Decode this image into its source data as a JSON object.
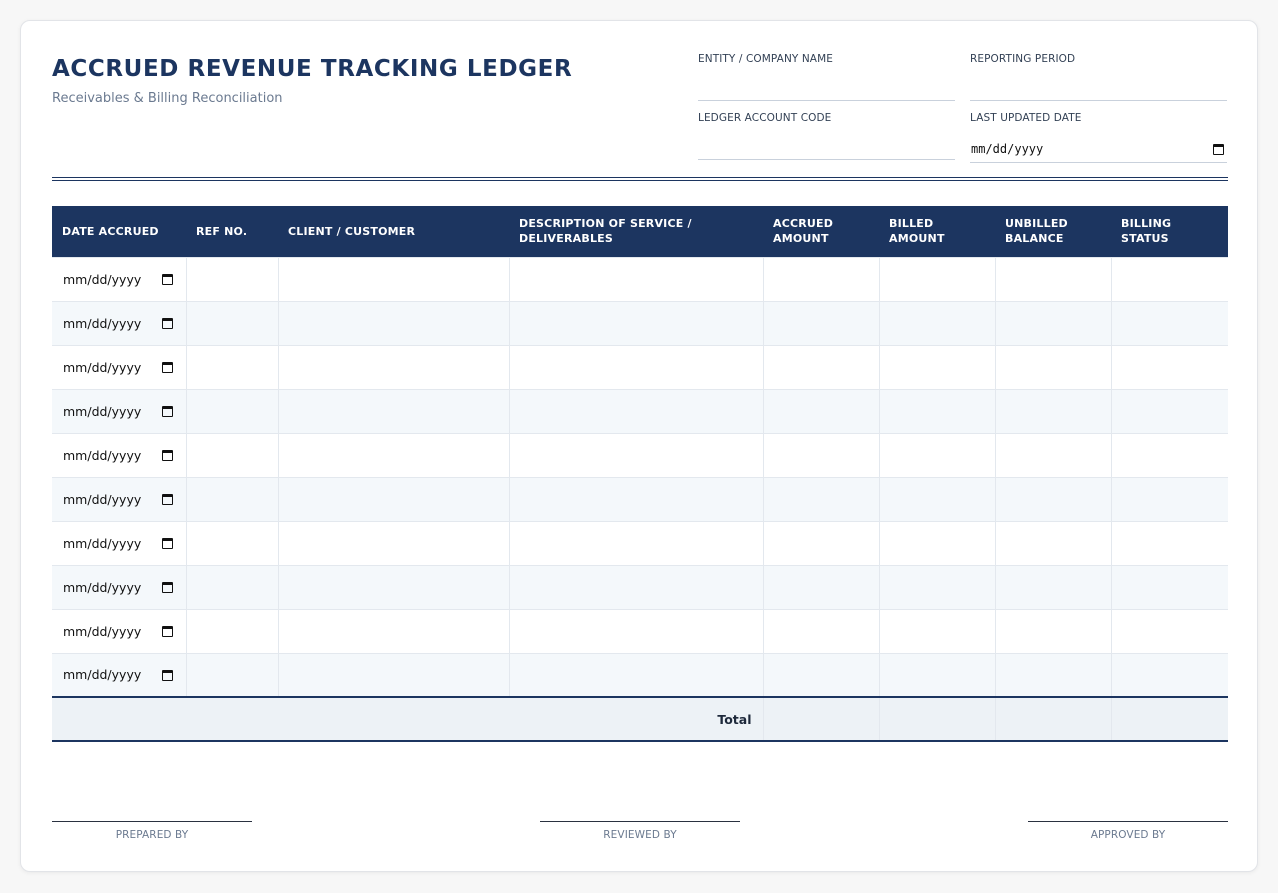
{
  "header": {
    "title": "ACCRUED REVENUE TRACKING LEDGER",
    "subtitle": "Receivables & Billing Reconciliation"
  },
  "meta": {
    "entity_label": "ENTITY / COMPANY NAME",
    "entity_value": "",
    "period_label": "REPORTING PERIOD",
    "period_value": "",
    "account_label": "LEDGER ACCOUNT CODE",
    "account_value": "",
    "updated_label": "LAST UPDATED DATE",
    "updated_value": "mm/dd/yyyy"
  },
  "table": {
    "columns": [
      "DATE ACCRUED",
      "REF NO.",
      "CLIENT / CUSTOMER",
      "DESCRIPTION OF SERVICE / DELIVERABLES",
      "ACCRUED AMOUNT",
      "BILLED AMOUNT",
      "UNBILLED BALANCE",
      "BILLING STATUS"
    ],
    "rows": [
      [
        "mm/dd/yyyy",
        "",
        "",
        "",
        "",
        "",
        "",
        ""
      ],
      [
        "mm/dd/yyyy",
        "",
        "",
        "",
        "",
        "",
        "",
        ""
      ],
      [
        "mm/dd/yyyy",
        "",
        "",
        "",
        "",
        "",
        "",
        ""
      ],
      [
        "mm/dd/yyyy",
        "",
        "",
        "",
        "",
        "",
        "",
        ""
      ],
      [
        "mm/dd/yyyy",
        "",
        "",
        "",
        "",
        "",
        "",
        ""
      ],
      [
        "mm/dd/yyyy",
        "",
        "",
        "",
        "",
        "",
        "",
        ""
      ],
      [
        "mm/dd/yyyy",
        "",
        "",
        "",
        "",
        "",
        "",
        ""
      ],
      [
        "mm/dd/yyyy",
        "",
        "",
        "",
        "",
        "",
        "",
        ""
      ],
      [
        "mm/dd/yyyy",
        "",
        "",
        "",
        "",
        "",
        "",
        ""
      ],
      [
        "mm/dd/yyyy",
        "",
        "",
        "",
        "",
        "",
        "",
        ""
      ]
    ],
    "total_label": "Total"
  },
  "signatures": {
    "prepared": "PREPARED BY",
    "reviewed": "REVIEWED BY",
    "approved": "APPROVED BY"
  },
  "colors": {
    "accent": "#1c3560",
    "zebra": "#f4f8fb",
    "total_bg": "#edf2f6"
  }
}
